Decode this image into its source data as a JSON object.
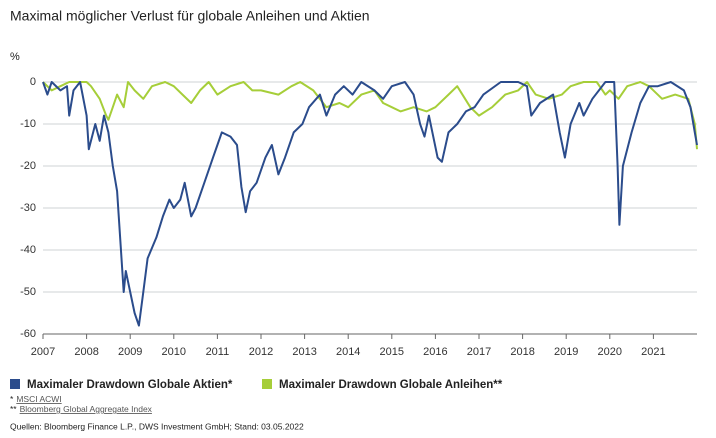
{
  "chart_data": {
    "type": "line",
    "title": "Maximal möglicher Verlust für globale Anleihen und Aktien",
    "y_unit": "%",
    "xlim": [
      2007,
      2022
    ],
    "xticks": [
      2007,
      2008,
      2009,
      2010,
      2011,
      2012,
      2013,
      2014,
      2015,
      2016,
      2017,
      2018,
      2019,
      2020,
      2021
    ],
    "ylim": [
      -60,
      0
    ],
    "yticks": [
      0,
      -10,
      -20,
      -30,
      -40,
      -50,
      -60
    ],
    "grid": true,
    "legend": "bottom",
    "series": [
      {
        "name": "Maximaler Drawdown Globale Aktien*",
        "color": "#2b4c8c",
        "x": [
          2007.0,
          2007.1,
          2007.2,
          2007.4,
          2007.55,
          2007.6,
          2007.7,
          2007.85,
          2008.0,
          2008.05,
          2008.2,
          2008.3,
          2008.4,
          2008.5,
          2008.6,
          2008.7,
          2008.8,
          2008.85,
          2008.9,
          2009.0,
          2009.1,
          2009.2,
          2009.3,
          2009.4,
          2009.6,
          2009.75,
          2009.9,
          2010.0,
          2010.15,
          2010.25,
          2010.4,
          2010.5,
          2010.7,
          2010.9,
          2011.0,
          2011.1,
          2011.3,
          2011.45,
          2011.55,
          2011.65,
          2011.75,
          2011.9,
          2012.1,
          2012.25,
          2012.4,
          2012.55,
          2012.75,
          2012.95,
          2013.1,
          2013.35,
          2013.5,
          2013.7,
          2013.9,
          2014.1,
          2014.3,
          2014.6,
          2014.8,
          2015.0,
          2015.3,
          2015.5,
          2015.65,
          2015.75,
          2015.85,
          2016.05,
          2016.15,
          2016.3,
          2016.5,
          2016.7,
          2016.9,
          2017.1,
          2017.5,
          2017.9,
          2018.1,
          2018.2,
          2018.4,
          2018.7,
          2018.85,
          2018.97,
          2019.1,
          2019.3,
          2019.4,
          2019.6,
          2019.9,
          2020.1,
          2020.18,
          2020.22,
          2020.3,
          2020.5,
          2020.7,
          2020.9,
          2021.1,
          2021.4,
          2021.7,
          2021.85,
          2021.95,
          2022.0
        ],
        "values": [
          0,
          -3,
          0,
          -2,
          -1,
          -8,
          -2,
          0,
          -8,
          -16,
          -10,
          -14,
          -8,
          -12,
          -20,
          -26,
          -42,
          -50,
          -45,
          -50,
          -55,
          -58,
          -50,
          -42,
          -37,
          -32,
          -28,
          -30,
          -28,
          -24,
          -32,
          -30,
          -24,
          -18,
          -15,
          -12,
          -13,
          -15,
          -25,
          -31,
          -26,
          -24,
          -18,
          -15,
          -22,
          -18,
          -12,
          -10,
          -6,
          -3,
          -8,
          -3,
          -1,
          -3,
          0,
          -2,
          -4,
          -1,
          0,
          -3,
          -10,
          -13,
          -8,
          -18,
          -19,
          -12,
          -10,
          -7,
          -6,
          -3,
          0,
          0,
          -1,
          -8,
          -5,
          -3,
          -12,
          -18,
          -10,
          -5,
          -8,
          -4,
          0,
          0,
          -20,
          -34,
          -20,
          -12,
          -5,
          -1,
          -1,
          0,
          -2,
          -6,
          -12,
          -15
        ]
      },
      {
        "name": "Maximaler Drawdown Globale Anleihen**",
        "color": "#a6ce39",
        "x": [
          2007.0,
          2007.2,
          2007.4,
          2007.6,
          2008.0,
          2008.1,
          2008.3,
          2008.45,
          2008.5,
          2008.6,
          2008.7,
          2008.85,
          2008.95,
          2009.1,
          2009.3,
          2009.5,
          2009.8,
          2010.0,
          2010.2,
          2010.4,
          2010.6,
          2010.8,
          2011.0,
          2011.3,
          2011.6,
          2011.8,
          2012.0,
          2012.4,
          2012.7,
          2012.9,
          2013.2,
          2013.5,
          2013.8,
          2014.0,
          2014.3,
          2014.6,
          2014.8,
          2015.0,
          2015.2,
          2015.5,
          2015.8,
          2016.0,
          2016.3,
          2016.5,
          2016.8,
          2017.0,
          2017.3,
          2017.6,
          2017.9,
          2018.1,
          2018.3,
          2018.6,
          2018.9,
          2019.1,
          2019.4,
          2019.7,
          2019.9,
          2020.0,
          2020.2,
          2020.4,
          2020.7,
          2020.9,
          2021.2,
          2021.5,
          2021.8,
          2021.95,
          2022.0
        ],
        "values": [
          0,
          -2,
          -1,
          0,
          0,
          -1,
          -4,
          -8,
          -9,
          -6,
          -3,
          -6,
          0,
          -2,
          -4,
          -1,
          0,
          -1,
          -3,
          -5,
          -2,
          0,
          -3,
          -1,
          0,
          -2,
          -2,
          -3,
          -1,
          0,
          -2,
          -6,
          -5,
          -6,
          -3,
          -2,
          -5,
          -6,
          -7,
          -6,
          -7,
          -6,
          -3,
          -1,
          -6,
          -8,
          -6,
          -3,
          -2,
          0,
          -3,
          -4,
          -3,
          -1,
          0,
          0,
          -3,
          -2,
          -4,
          -1,
          0,
          -1,
          -4,
          -3,
          -4,
          -10,
          -16
        ]
      }
    ],
    "footnotes": [
      {
        "mark": "*",
        "text": "MSCI ACWI"
      },
      {
        "mark": "**",
        "text": "Bloomberg Global Aggregate Index"
      }
    ],
    "source": "Quellen: Bloomberg Finance L.P., DWS Investment GmbH; Stand: 03.05.2022"
  }
}
